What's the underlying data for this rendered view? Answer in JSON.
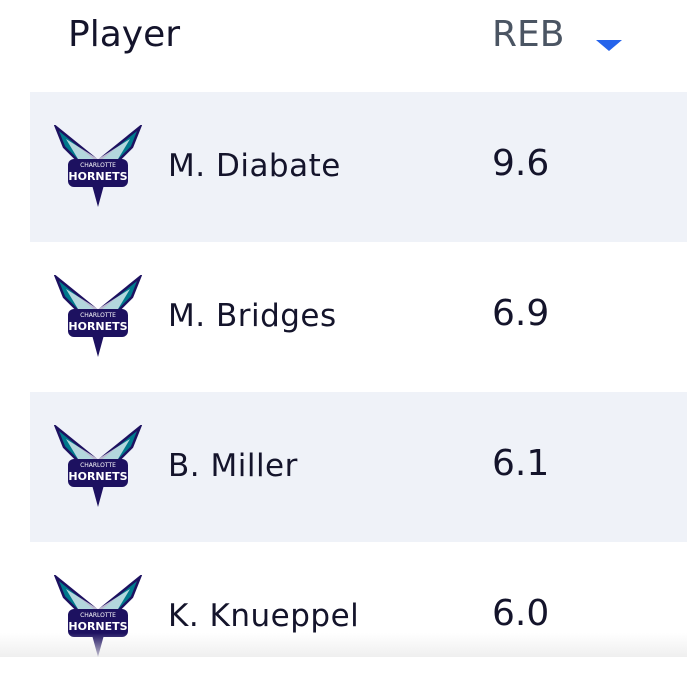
{
  "table": {
    "columns": [
      "Player",
      "REB"
    ],
    "rows": [
      [
        "M. Diabate",
        "9.6"
      ],
      [
        "M. Bridges",
        "6.9"
      ],
      [
        "B. Miller",
        "6.1"
      ],
      [
        "K. Knueppel",
        "6.0"
      ]
    ]
  },
  "logo": {
    "line1": "CHARLOTTE",
    "line2": "HORNETS"
  }
}
